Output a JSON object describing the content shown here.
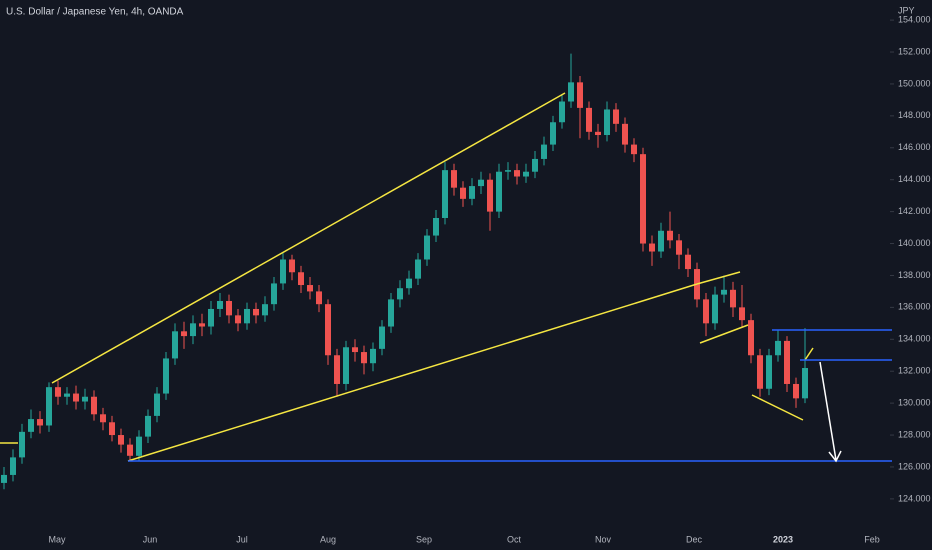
{
  "chart_data": {
    "type": "candlestick",
    "title": "U.S. Dollar / Japanese Yen, 4h, OANDA",
    "currency": "JPY",
    "up_color": "#26a69a",
    "down_color": "#ef5350",
    "ylim": [
      122.05,
      155.26
    ],
    "yticks": [
      {
        "value": 124,
        "label": "124.000"
      },
      {
        "value": 126,
        "label": "126.000"
      },
      {
        "value": 128,
        "label": "128.000"
      },
      {
        "value": 130,
        "label": "130.000"
      },
      {
        "value": 132,
        "label": "132.000"
      },
      {
        "value": 134,
        "label": "134.000"
      },
      {
        "value": 136,
        "label": "136.000"
      },
      {
        "value": 138,
        "label": "138.000"
      },
      {
        "value": 140,
        "label": "140.000"
      },
      {
        "value": 142,
        "label": "142.000"
      },
      {
        "value": 144,
        "label": "144.000"
      },
      {
        "value": 146,
        "label": "146.000"
      },
      {
        "value": 148,
        "label": "148.000"
      },
      {
        "value": 150,
        "label": "150.000"
      },
      {
        "value": 152,
        "label": "152.000"
      },
      {
        "value": 154,
        "label": "154.000"
      }
    ],
    "xtick_labels": [
      "May",
      "Jun",
      "Jul",
      "Aug",
      "Sep",
      "Oct",
      "Nov",
      "Dec",
      "2023",
      "Feb"
    ],
    "open": [
      125.0,
      125.5,
      126.6,
      128.2,
      129.0,
      128.6,
      131.0,
      130.4,
      130.6,
      130.1,
      130.4,
      129.3,
      128.8,
      128.0,
      127.4,
      126.7,
      127.9,
      129.2,
      130.6,
      132.8,
      134.5,
      134.2,
      135.0,
      134.8,
      135.9,
      136.4,
      135.5,
      135.0,
      135.9,
      135.5,
      136.2,
      137.5,
      139.0,
      138.2,
      137.4,
      137.0,
      136.2,
      133.0,
      131.2,
      133.5,
      133.2,
      132.5,
      133.4,
      134.8,
      136.5,
      137.2,
      137.8,
      139.0,
      140.5,
      141.6,
      144.6,
      143.5,
      142.8,
      143.6,
      144.0,
      142.0,
      144.5,
      144.6,
      144.2,
      144.5,
      145.3,
      146.2,
      147.6,
      148.9,
      150.1,
      148.5,
      147.0,
      146.8,
      148.4,
      147.5,
      146.2,
      145.6,
      140.0,
      139.5,
      140.8,
      140.2,
      139.3,
      138.4,
      136.5,
      135.0,
      136.8,
      137.1,
      136.0,
      135.2,
      133.0,
      130.9,
      133.0,
      133.9,
      131.2,
      130.3
    ],
    "high": [
      126.0,
      127.1,
      128.7,
      129.6,
      129.5,
      131.3,
      131.4,
      131.0,
      131.1,
      130.9,
      130.8,
      129.7,
      129.2,
      128.4,
      127.8,
      128.3,
      129.6,
      131.0,
      133.2,
      135.0,
      135.1,
      135.5,
      135.6,
      136.4,
      136.9,
      136.8,
      135.9,
      136.3,
      136.3,
      136.7,
      137.9,
      139.4,
      139.3,
      138.6,
      137.9,
      137.4,
      136.5,
      133.4,
      133.9,
      134.0,
      133.6,
      133.8,
      135.2,
      136.9,
      137.7,
      138.3,
      139.4,
      140.9,
      142.1,
      145.1,
      145.0,
      143.9,
      144.1,
      144.5,
      144.4,
      145.0,
      145.1,
      145.0,
      145.0,
      145.8,
      146.7,
      148.0,
      149.3,
      151.9,
      150.5,
      148.9,
      147.5,
      148.9,
      148.8,
      147.9,
      146.6,
      146.0,
      140.5,
      141.3,
      142.0,
      140.6,
      139.7,
      138.8,
      136.9,
      137.3,
      138.0,
      137.6,
      137.4,
      135.6,
      133.4,
      133.4,
      134.6,
      134.2,
      131.6,
      134.7
    ],
    "low": [
      124.6,
      125.1,
      126.2,
      127.8,
      128.1,
      128.2,
      129.9,
      129.9,
      129.6,
      129.6,
      128.9,
      128.3,
      127.6,
      126.9,
      126.4,
      126.4,
      127.5,
      128.8,
      130.2,
      132.4,
      133.4,
      133.7,
      134.2,
      134.3,
      135.4,
      135.0,
      134.5,
      134.6,
      135.0,
      135.1,
      135.8,
      137.1,
      137.7,
      136.9,
      136.5,
      135.7,
      132.4,
      130.4,
      130.8,
      132.6,
      131.8,
      132.0,
      133.0,
      134.4,
      136.0,
      136.8,
      137.4,
      138.6,
      140.1,
      141.2,
      143.0,
      142.3,
      142.4,
      143.1,
      140.8,
      141.6,
      144.0,
      143.7,
      143.8,
      144.1,
      144.9,
      145.8,
      147.2,
      148.5,
      146.6,
      146.5,
      146.0,
      146.4,
      147.0,
      145.7,
      145.1,
      139.5,
      138.6,
      139.1,
      139.7,
      138.4,
      137.9,
      136.0,
      134.2,
      134.6,
      136.3,
      135.4,
      134.8,
      132.5,
      130.4,
      130.5,
      132.6,
      130.7,
      129.7,
      130.0
    ],
    "close": [
      125.5,
      126.6,
      128.2,
      129.0,
      128.6,
      131.0,
      130.4,
      130.6,
      130.1,
      130.4,
      129.3,
      128.8,
      128.0,
      127.4,
      126.7,
      127.9,
      129.2,
      130.6,
      132.8,
      134.5,
      134.2,
      135.0,
      134.8,
      135.9,
      136.4,
      135.5,
      135.0,
      135.9,
      135.5,
      136.2,
      137.5,
      139.0,
      138.2,
      137.4,
      137.0,
      136.2,
      133.0,
      131.2,
      133.5,
      133.2,
      132.5,
      133.4,
      134.8,
      136.5,
      137.2,
      137.8,
      139.0,
      140.5,
      141.6,
      144.6,
      143.5,
      142.8,
      143.6,
      144.0,
      142.0,
      144.5,
      144.6,
      144.2,
      144.5,
      145.3,
      146.2,
      147.6,
      148.9,
      150.1,
      148.5,
      147.0,
      146.8,
      148.4,
      147.5,
      146.2,
      145.6,
      140.0,
      139.5,
      140.8,
      140.2,
      139.3,
      138.4,
      136.5,
      135.0,
      136.8,
      137.1,
      136.0,
      135.2,
      133.0,
      130.9,
      133.0,
      133.9,
      131.2,
      130.3,
      132.2
    ]
  }
}
